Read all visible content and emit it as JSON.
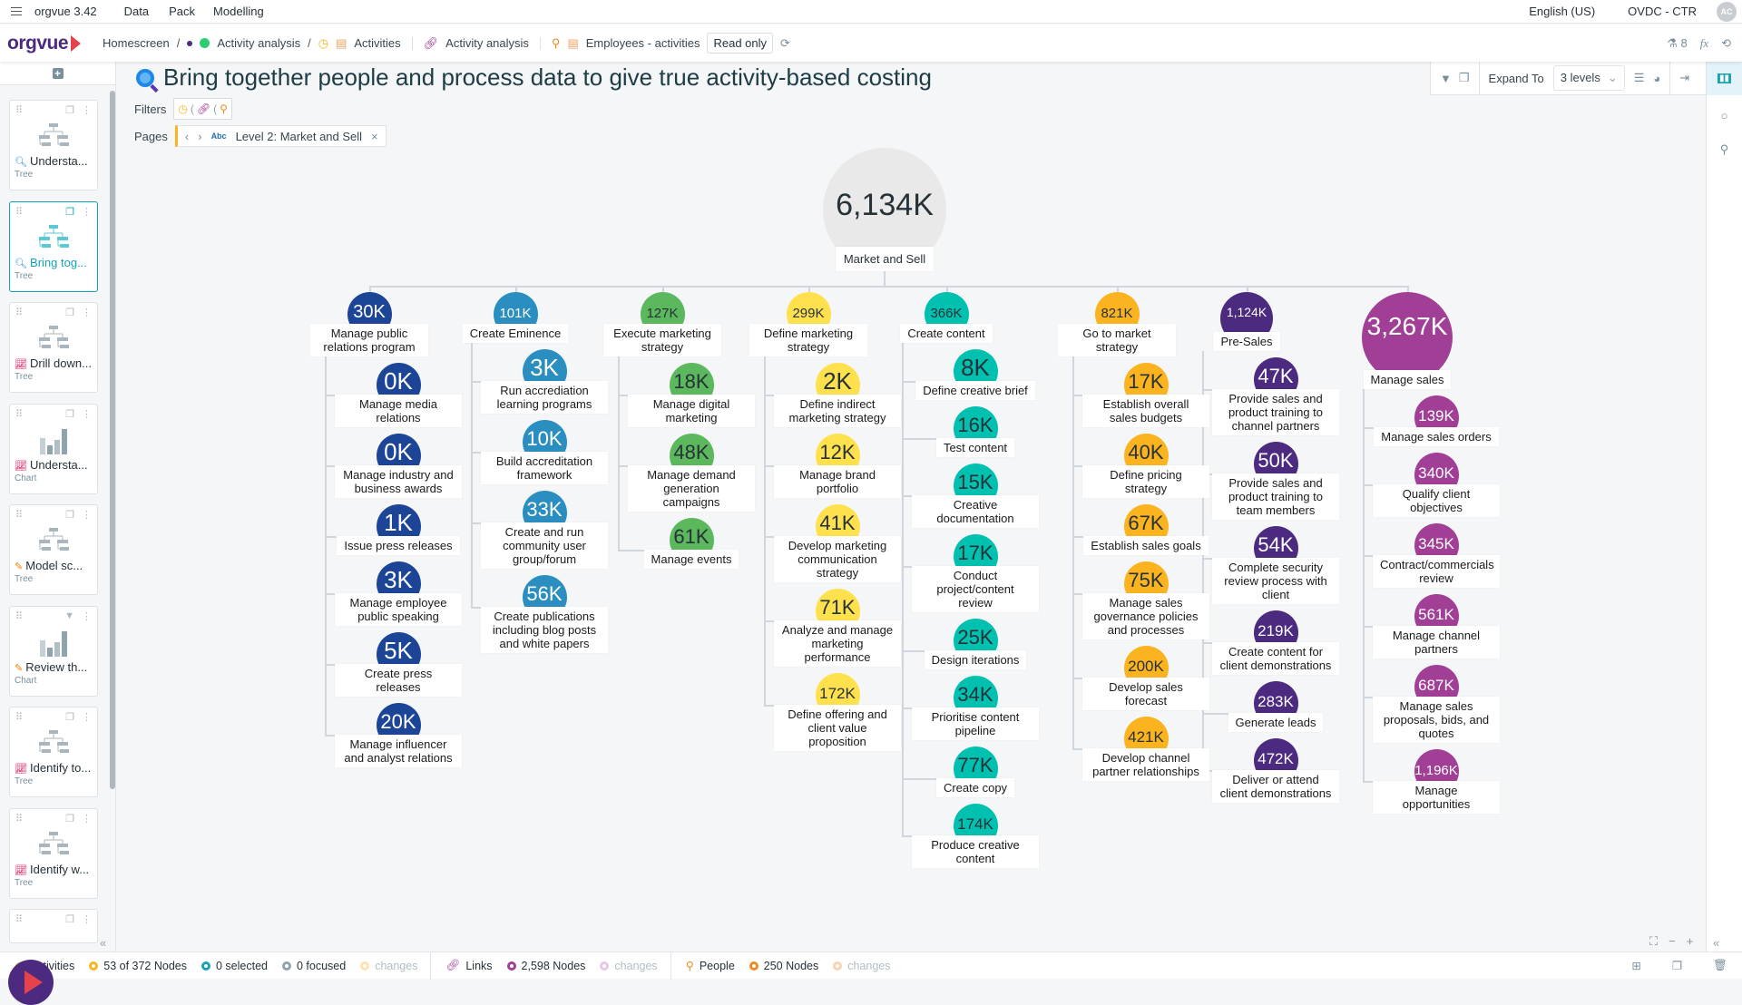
{
  "menubar": {
    "app": "orgvue 3.42",
    "items": [
      "Data",
      "Pack",
      "Modelling"
    ],
    "language": "English (US)",
    "tenant": "OVDC - CTR",
    "avatar": "AC"
  },
  "navbar": {
    "logo": "orgvue",
    "breadcrumb": [
      "Homescreen",
      "Activity analysis"
    ],
    "datasets": [
      {
        "label": "Activities",
        "icon": "clock-icon",
        "color": "#fbb41f"
      },
      {
        "label": "Activity analysis",
        "icon": "link-icon",
        "color": "#a13f96"
      },
      {
        "label": "Employees - activities",
        "icon": "person-icon",
        "color": "#f08a24"
      }
    ],
    "read_only": "Read only",
    "flask_count": "8",
    "fx": "fx"
  },
  "sidebar": {
    "cards": [
      {
        "title": "Understa...",
        "type": "Tree",
        "icon": "magnifier-icon",
        "thumb": "tree"
      },
      {
        "title": "Bring tog...",
        "type": "Tree",
        "icon": "magnifier-icon",
        "thumb": "tree",
        "active": true
      },
      {
        "title": "Drill down...",
        "type": "Tree",
        "icon": "chart-trend-icon",
        "thumb": "tree"
      },
      {
        "title": "Understa...",
        "type": "Chart",
        "icon": "chart-trend-icon",
        "thumb": "chart"
      },
      {
        "title": "Model sc...",
        "type": "Tree",
        "icon": "pencil-icon",
        "thumb": "tree"
      },
      {
        "title": "Review th...",
        "type": "Chart",
        "icon": "pencil-icon",
        "thumb": "chart"
      },
      {
        "title": "Identify to...",
        "type": "Tree",
        "icon": "chart-trend-icon",
        "thumb": "tree"
      },
      {
        "title": "Identify w...",
        "type": "Tree",
        "icon": "chart-trend-icon",
        "thumb": "tree"
      }
    ]
  },
  "page": {
    "title": "Bring together people and process data to give true activity-based costing",
    "filters_label": "Filters",
    "pages_label": "Pages",
    "page_type": "Abc",
    "page_value": "Level 2: Market and Sell"
  },
  "toolbar": {
    "expand_label": "Expand To",
    "expand_value": "3 levels"
  },
  "tree": {
    "root": {
      "value": "6,134K",
      "label": "Market and Sell"
    },
    "columns": [
      {
        "value": "30K",
        "label": "Manage public relations program",
        "color": "#1c4597",
        "text_color": "#ffffff",
        "children": [
          {
            "value": "0K",
            "label": "Manage media relations"
          },
          {
            "value": "0K",
            "label": "Manage industry and business awards"
          },
          {
            "value": "1K",
            "label": "Issue press releases"
          },
          {
            "value": "3K",
            "label": "Manage employee public speaking"
          },
          {
            "value": "5K",
            "label": "Create press releases"
          },
          {
            "value": "20K",
            "label": "Manage influencer and analyst relations"
          }
        ]
      },
      {
        "value": "101K",
        "label": "Create Eminence",
        "color": "#2a8fc0",
        "text_color": "#ffffff",
        "children": [
          {
            "value": "3K",
            "label": "Run accrediation learning programs"
          },
          {
            "value": "10K",
            "label": "Build accreditation framework"
          },
          {
            "value": "33K",
            "label": "Create and run community user group/forum"
          },
          {
            "value": "56K",
            "label": "Create publications including blog posts and white papers"
          }
        ]
      },
      {
        "value": "127K",
        "label": "Execute marketing strategy",
        "color": "#5cb85c",
        "text_color": "#263238",
        "children": [
          {
            "value": "18K",
            "label": "Manage digital marketing"
          },
          {
            "value": "48K",
            "label": "Manage demand generation campaigns"
          },
          {
            "value": "61K",
            "label": "Manage events"
          }
        ]
      },
      {
        "value": "299K",
        "label": "Define marketing strategy",
        "color": "#ffe14d",
        "text_color": "#263238",
        "children": [
          {
            "value": "2K",
            "label": "Define indirect marketing strategy"
          },
          {
            "value": "12K",
            "label": "Manage brand portfolio"
          },
          {
            "value": "41K",
            "label": "Develop marketing communication strategy"
          },
          {
            "value": "71K",
            "label": "Analyze and manage marketing performance"
          },
          {
            "value": "172K",
            "label": "Define offering and client value proposition"
          }
        ]
      },
      {
        "value": "366K",
        "label": "Create content",
        "color": "#00c0b0",
        "text_color": "#263238",
        "children": [
          {
            "value": "8K",
            "label": "Define creative brief"
          },
          {
            "value": "16K",
            "label": "Test content"
          },
          {
            "value": "15K",
            "label": "Creative documentation"
          },
          {
            "value": "17K",
            "label": "Conduct project/content review"
          },
          {
            "value": "25K",
            "label": "Design iterations"
          },
          {
            "value": "34K",
            "label": "Prioritise content pipeline"
          },
          {
            "value": "77K",
            "label": "Create copy"
          },
          {
            "value": "174K",
            "label": "Produce creative content"
          }
        ]
      },
      {
        "value": "821K",
        "label": "Go to market strategy",
        "color": "#fbb41f",
        "text_color": "#263238",
        "children": [
          {
            "value": "17K",
            "label": "Establish overall sales budgets"
          },
          {
            "value": "40K",
            "label": "Define pricing strategy"
          },
          {
            "value": "67K",
            "label": "Establish sales goals"
          },
          {
            "value": "75K",
            "label": "Manage sales governance policies and processes"
          },
          {
            "value": "200K",
            "label": "Develop sales forecast"
          },
          {
            "value": "421K",
            "label": "Develop channel partner relationships"
          }
        ]
      },
      {
        "value": "1,124K",
        "label": "Pre-Sales",
        "color": "#4b2a7f",
        "text_color": "#ffffff",
        "children": [
          {
            "value": "47K",
            "label": "Provide sales and product training to channel partners"
          },
          {
            "value": "50K",
            "label": "Provide sales and product training to team members"
          },
          {
            "value": "54K",
            "label": "Complete security review process with client"
          },
          {
            "value": "219K",
            "label": "Create content for client demonstrations"
          },
          {
            "value": "283K",
            "label": "Generate leads"
          },
          {
            "value": "472K",
            "label": "Deliver or attend client demonstrations"
          }
        ]
      },
      {
        "value": "3,267K",
        "label": "Manage sales",
        "color": "#a13f96",
        "text_color": "#ffffff",
        "children": [
          {
            "value": "139K",
            "label": "Manage sales orders"
          },
          {
            "value": "340K",
            "label": "Qualify client objectives"
          },
          {
            "value": "345K",
            "label": "Contract/commercials review"
          },
          {
            "value": "561K",
            "label": "Manage channel partners"
          },
          {
            "value": "687K",
            "label": "Manage sales proposals, bids, and quotes"
          },
          {
            "value": "1,196K",
            "label": "Manage opportunities"
          }
        ]
      }
    ]
  },
  "status": {
    "activities": {
      "label": "Activities",
      "nodes": "53 of 372 Nodes",
      "selected": "0 selected",
      "focused": "0 focused",
      "changes": "changes",
      "changes_count": "0"
    },
    "links": {
      "label": "Links",
      "nodes": "2,598 Nodes",
      "changes": "changes",
      "changes_count": "0"
    },
    "people": {
      "label": "People",
      "nodes": "250 Nodes",
      "changes": "changes",
      "changes_count": "0"
    }
  }
}
